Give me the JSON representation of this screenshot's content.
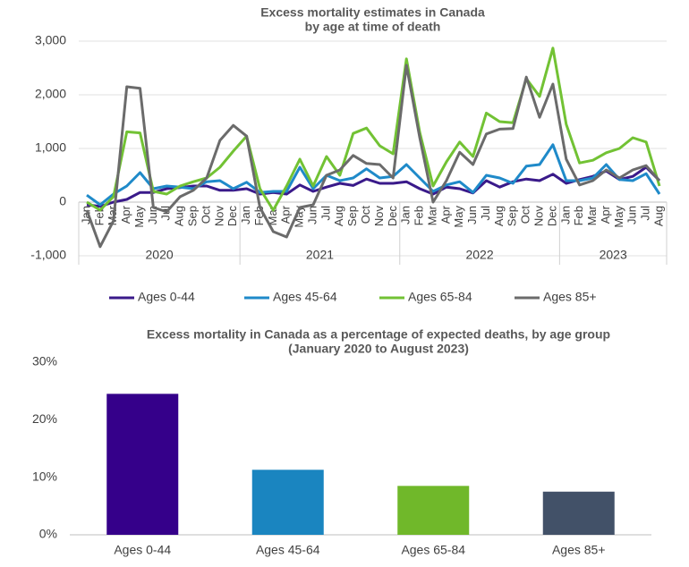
{
  "chart_data": [
    {
      "type": "line",
      "title": [
        "Excess mortality estimates in Canada",
        "by age at time of death"
      ],
      "categories": [
        "Jan",
        "Feb",
        "Mar",
        "Apr",
        "May",
        "Jun",
        "Jul",
        "Aug",
        "Sep",
        "Oct",
        "Nov",
        "Dec",
        "Jan",
        "Feb",
        "Mar",
        "Apr",
        "May",
        "Jun",
        "Jul",
        "Aug",
        "Sep",
        "Oct",
        "Nov",
        "Dec",
        "Jan",
        "Feb",
        "Mar",
        "Apr",
        "May",
        "Jun",
        "Jul",
        "Aug",
        "Sep",
        "Oct",
        "Nov",
        "Dec",
        "Jan",
        "Feb",
        "Mar",
        "Apr",
        "May",
        "Jun",
        "Jul",
        "Aug"
      ],
      "groups": [
        {
          "label": "2020",
          "size": 12
        },
        {
          "label": "2021",
          "size": 12
        },
        {
          "label": "2022",
          "size": 12
        },
        {
          "label": "2023",
          "size": 8
        }
      ],
      "ylim": [
        -1000,
        3000
      ],
      "yticks": [
        {
          "value": -1000,
          "label": "-1,000"
        },
        0,
        {
          "value": 1000,
          "label": "1,000"
        },
        {
          "value": 2000,
          "label": "2,000"
        },
        {
          "value": 3000,
          "label": "3,000"
        }
      ],
      "grid": true,
      "legend": "bottom",
      "series": [
        {
          "name": "Ages 0-44",
          "color": "#3a1a8a",
          "values": [
            -50,
            -80,
            0,
            50,
            180,
            180,
            250,
            270,
            300,
            300,
            220,
            220,
            250,
            150,
            180,
            150,
            320,
            200,
            280,
            350,
            310,
            430,
            350,
            350,
            380,
            250,
            150,
            280,
            250,
            170,
            400,
            280,
            380,
            430,
            400,
            520,
            350,
            420,
            480,
            580,
            420,
            480,
            650,
            400
          ]
        },
        {
          "name": "Ages 45-64",
          "color": "#1f8ac9",
          "values": [
            130,
            -50,
            150,
            300,
            550,
            250,
            300,
            280,
            250,
            380,
            400,
            250,
            370,
            180,
            200,
            200,
            650,
            250,
            500,
            400,
            450,
            620,
            450,
            480,
            700,
            450,
            200,
            320,
            380,
            180,
            500,
            450,
            350,
            670,
            700,
            1070,
            400,
            400,
            450,
            700,
            420,
            400,
            530,
            150
          ]
        },
        {
          "name": "Ages 65-84",
          "color": "#72c234",
          "values": [
            0,
            -150,
            100,
            1310,
            1290,
            200,
            150,
            300,
            380,
            450,
            650,
            950,
            1230,
            250,
            -150,
            300,
            800,
            300,
            850,
            500,
            1280,
            1380,
            1050,
            900,
            2670,
            1300,
            300,
            750,
            1120,
            850,
            1660,
            1500,
            1480,
            2300,
            1970,
            2870,
            1450,
            730,
            780,
            920,
            1000,
            1200,
            1120,
            300
          ]
        },
        {
          "name": "Ages 85+",
          "color": "#6b6b6b",
          "values": [
            -150,
            -830,
            -350,
            2150,
            2120,
            -100,
            -180,
            100,
            220,
            450,
            1150,
            1430,
            1230,
            -100,
            -550,
            -650,
            -100,
            -50,
            500,
            600,
            870,
            720,
            700,
            450,
            2550,
            1200,
            0,
            400,
            930,
            700,
            1270,
            1360,
            1370,
            2330,
            1580,
            2200,
            800,
            320,
            400,
            600,
            450,
            600,
            680,
            400
          ]
        }
      ]
    },
    {
      "type": "bar",
      "title": [
        "Excess mortality in Canada as a percentage of expected deaths, by age group",
        "(January 2020 to August 2023)"
      ],
      "categories": [
        "Ages 0-44",
        "Ages 45-64",
        "Ages 65-84",
        "Ages 85+"
      ],
      "values": [
        24.5,
        11.3,
        8.5,
        7.5
      ],
      "colors": [
        "#35008a",
        "#1a85c0",
        "#70b82a",
        "#425168"
      ],
      "ylim": [
        0,
        30
      ],
      "yticks": [
        {
          "value": 0,
          "label": "0%"
        },
        {
          "value": 10,
          "label": "10%"
        },
        {
          "value": 20,
          "label": "20%"
        },
        {
          "value": 30,
          "label": "30%"
        }
      ],
      "grid": false
    }
  ]
}
